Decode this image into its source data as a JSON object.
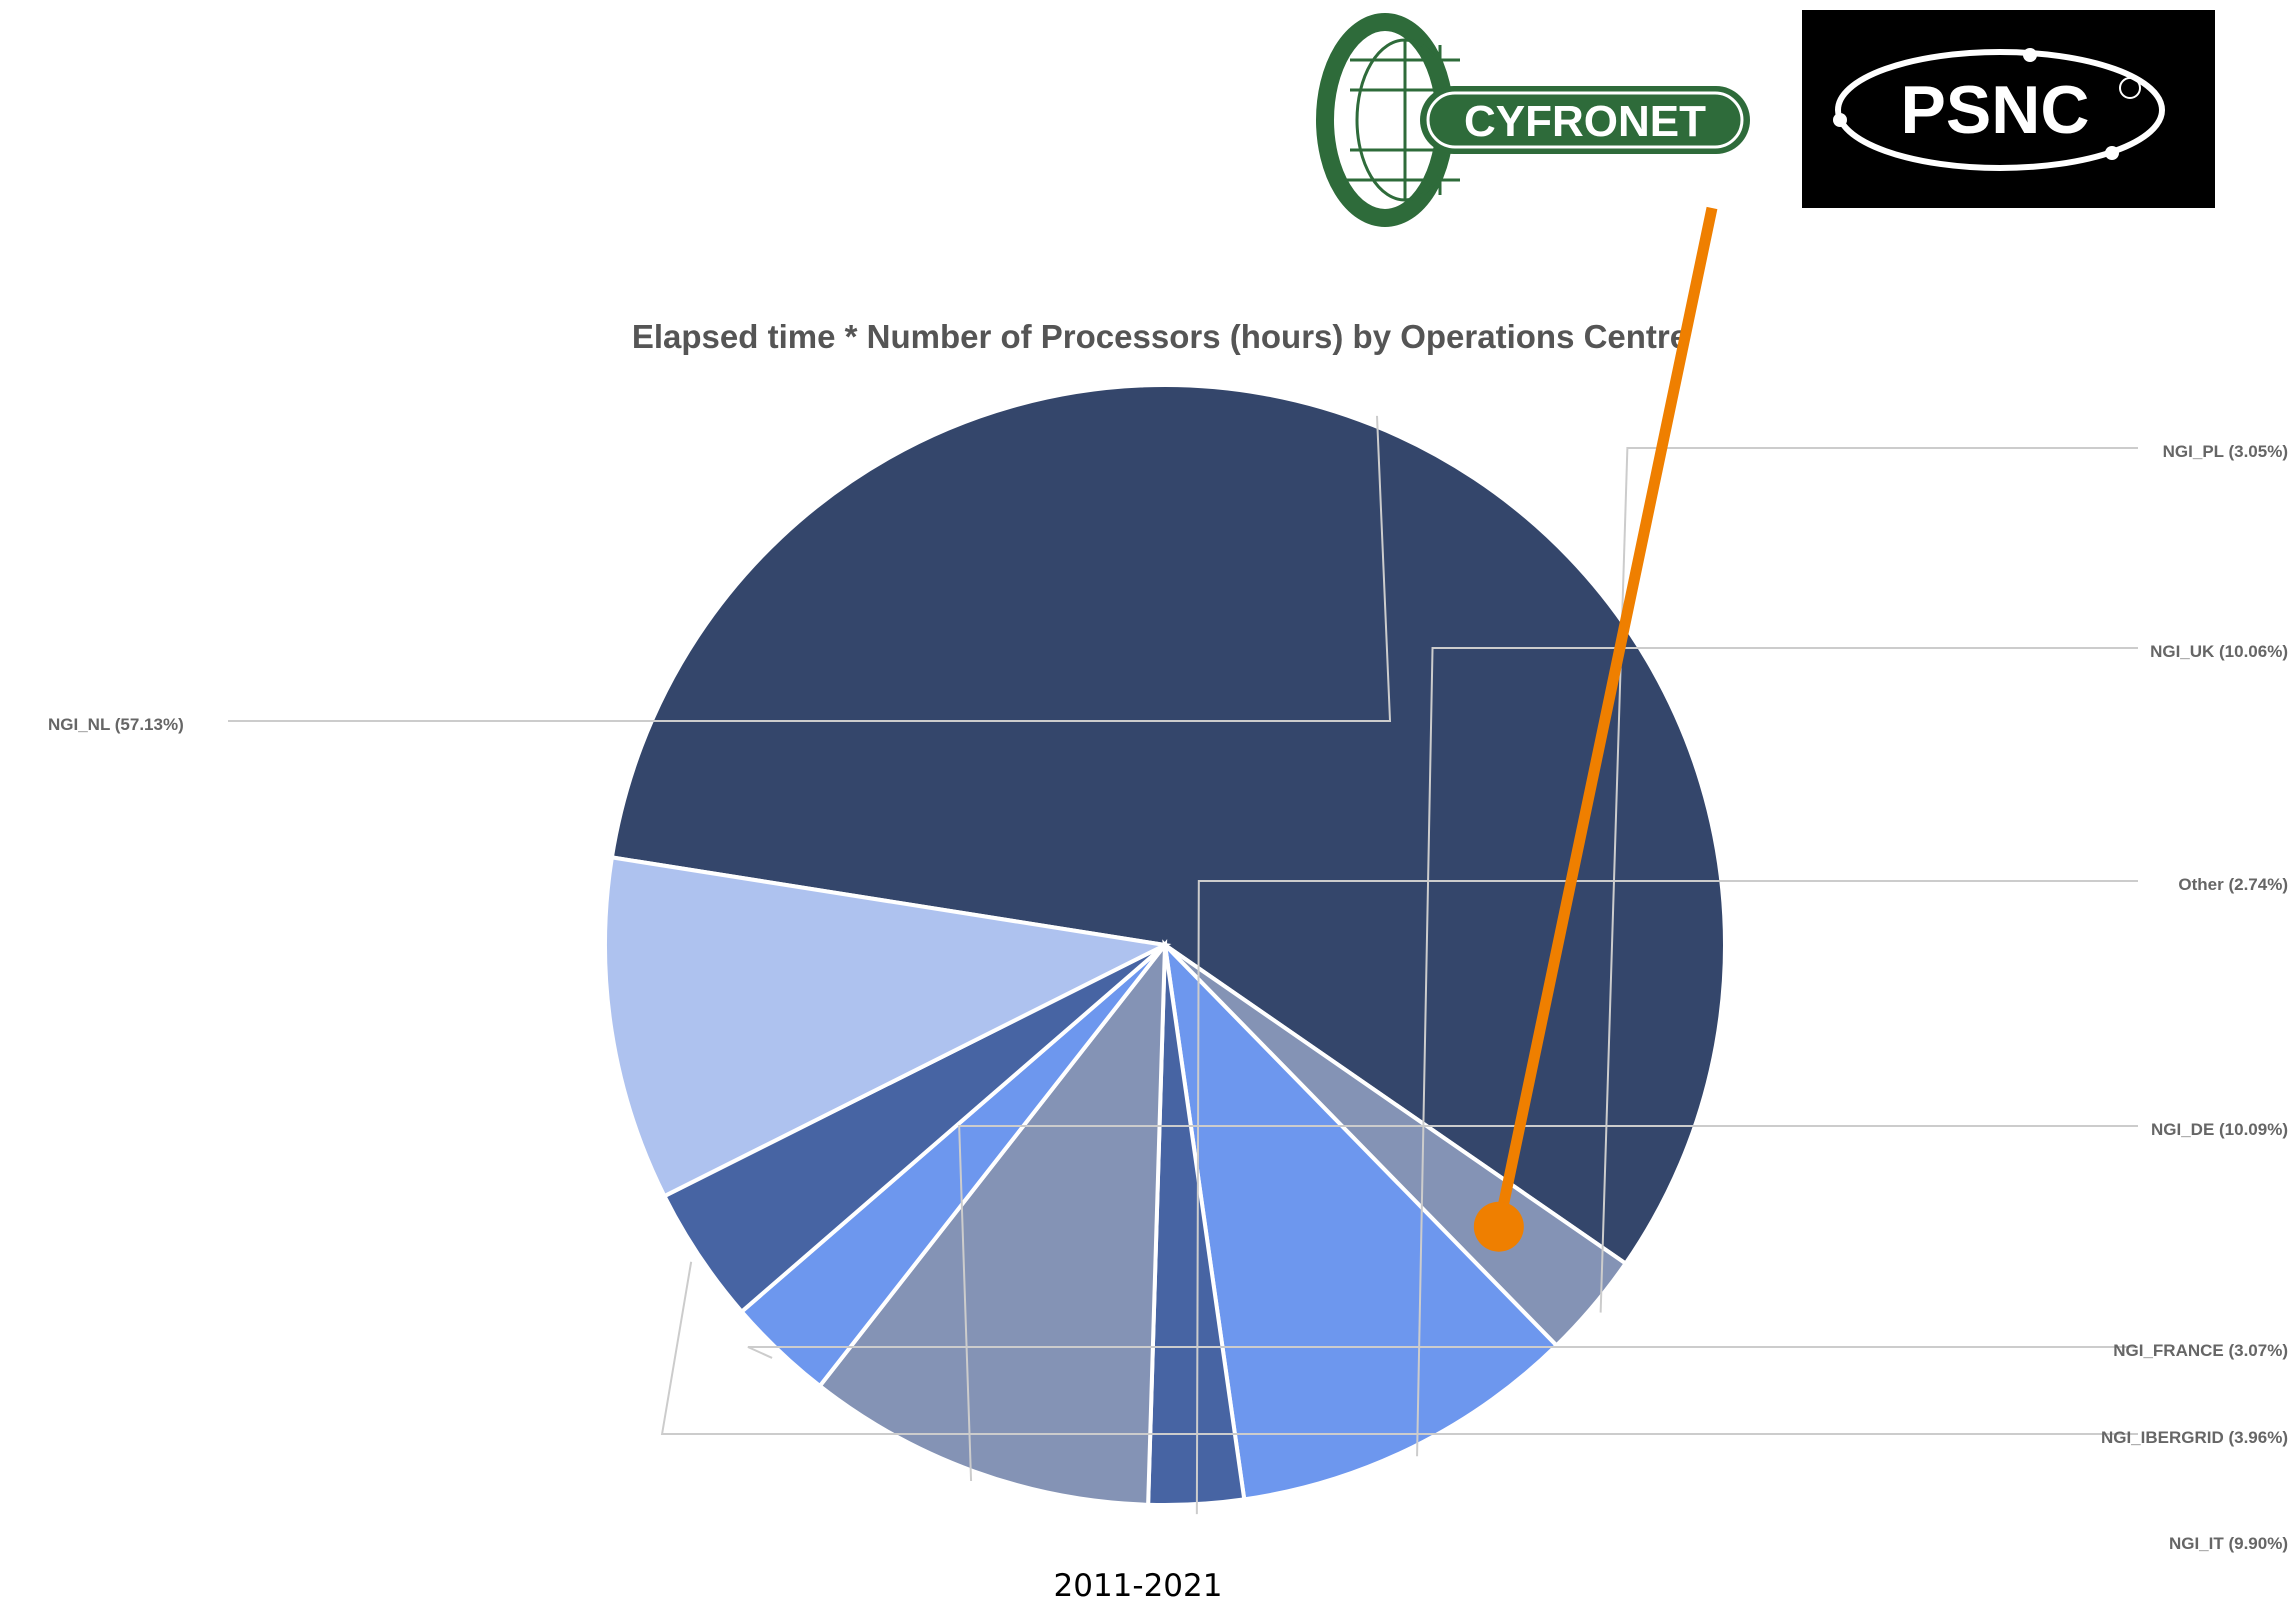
{
  "chart_data": {
    "type": "pie",
    "title": "Elapsed time * Number of Processors (hours) by Operations Centre",
    "subtitle": "2011-2021",
    "slices": [
      {
        "label": "NGI_NL (57.13%)",
        "value": 57.13,
        "color": "#34466b"
      },
      {
        "label": "NGI_PL (3.05%)",
        "value": 3.05,
        "color": "#8493b5"
      },
      {
        "label": "NGI_UK (10.06%)",
        "value": 10.06,
        "color": "#6d97ee"
      },
      {
        "label": "Other (2.74%)",
        "value": 2.74,
        "color": "#4764a3"
      },
      {
        "label": "NGI_DE (10.09%)",
        "value": 10.09,
        "color": "#8493b5"
      },
      {
        "label": "NGI_FRANCE (3.07%)",
        "value": 3.07,
        "color": "#6d97ee"
      },
      {
        "label": "NGI_IBERGRID (3.96%)",
        "value": 3.96,
        "color": "#4764a3"
      },
      {
        "label": "NGI_IT (9.90%)",
        "value": 9.9,
        "color": "#aec2ef"
      }
    ],
    "highlight": {
      "slice": "NGI_PL (3.05%)",
      "color": "#ef7f00"
    }
  },
  "logos": {
    "cyfronet": {
      "text": "CYFRONET",
      "color": "#2e6b3a"
    },
    "psnc": {
      "text": "PSNC",
      "background": "#000000",
      "color": "#ffffff"
    }
  }
}
